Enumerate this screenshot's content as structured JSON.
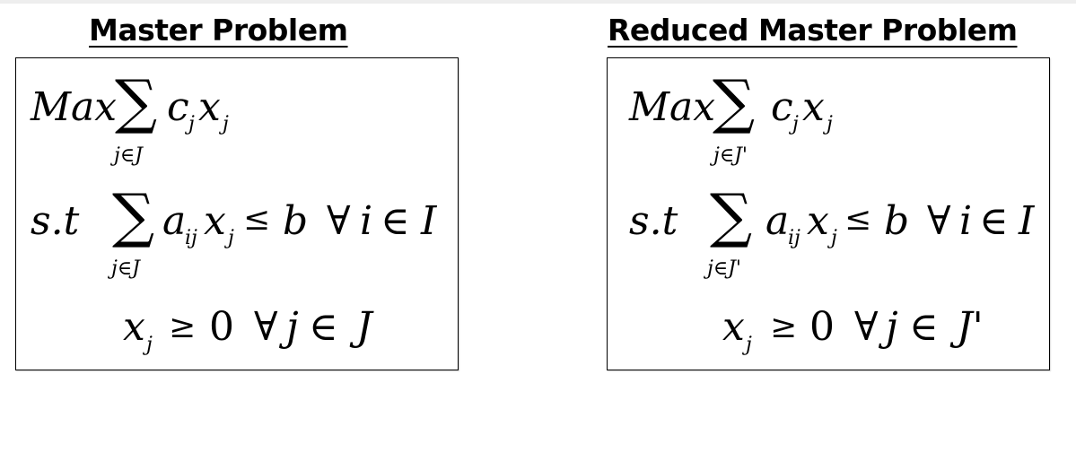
{
  "left": {
    "title": "Master Problem",
    "objective": {
      "max_label": "Max",
      "sigma": "∑",
      "index": "j∈J",
      "coef": "c",
      "coef_sub": "j",
      "var": "x",
      "var_sub": "j"
    },
    "constraint": {
      "st_label": "s.t",
      "sigma": "∑",
      "index": "j∈J",
      "coef": "a",
      "coef_sub": "ij",
      "var": "x",
      "var_sub": "j",
      "relation": "≤",
      "rhs": "b",
      "forall": "∀",
      "forall_var": "i",
      "elem": "∈",
      "set": "I"
    },
    "nonneg": {
      "var": "x",
      "var_sub": "j",
      "relation": "≥",
      "zero": "0",
      "forall": "∀",
      "forall_var": "j",
      "elem": "∈",
      "set": "J"
    }
  },
  "right": {
    "title": "Reduced Master Problem",
    "objective": {
      "max_label": "Max",
      "sigma": "∑",
      "index": "j∈J'",
      "coef": "c",
      "coef_sub": "j",
      "var": "x",
      "var_sub": "j"
    },
    "constraint": {
      "st_label": "s.t",
      "sigma": "∑",
      "index": "j∈J'",
      "coef": "a",
      "coef_sub": "ij",
      "var": "x",
      "var_sub": "j",
      "relation": "≤",
      "rhs": "b",
      "forall": "∀",
      "forall_var": "i",
      "elem": "∈",
      "set": "I"
    },
    "nonneg": {
      "var": "x",
      "var_sub": "j",
      "relation": "≥",
      "zero": "0",
      "forall": "∀",
      "forall_var": "j",
      "elem": "∈",
      "set": "J'"
    }
  }
}
